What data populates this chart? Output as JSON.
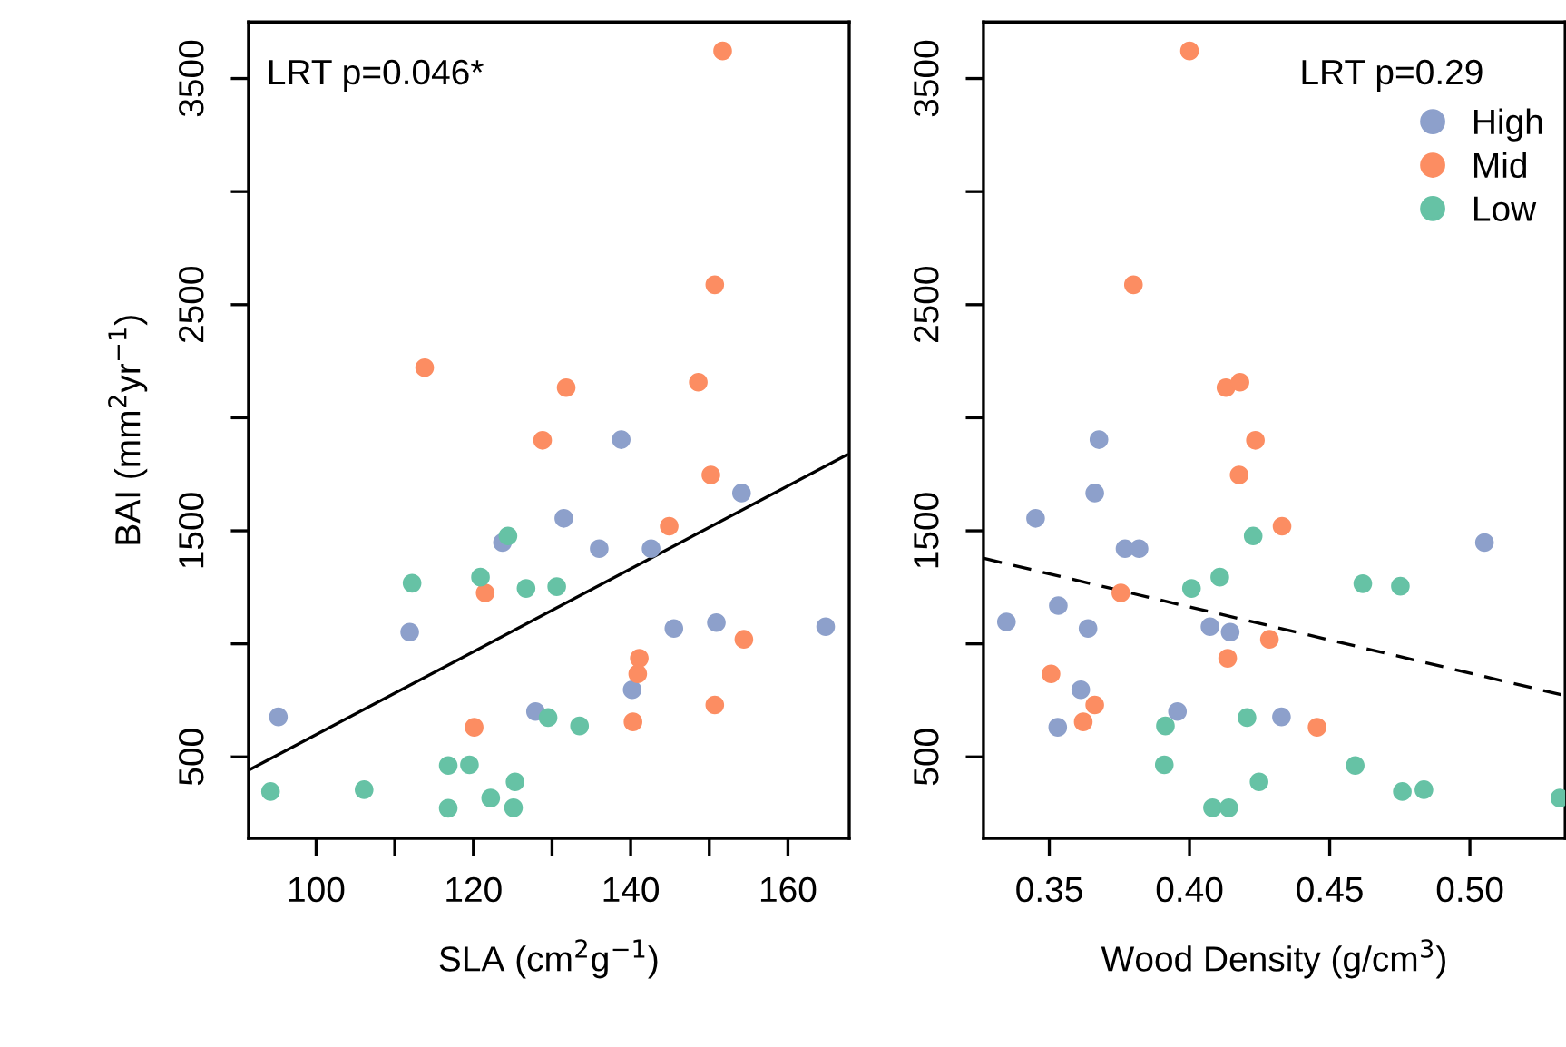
{
  "chart_data": [
    {
      "type": "scatter",
      "xlabel": "SLA (cm$^{2}$g$^{−1}$)",
      "ylabel": "BAI (mm$^{2}$yr$^{−1}$)",
      "annotations": [
        "LRT p=0.046*"
      ],
      "xlim": [
        91.4,
        167.8
      ],
      "ylim": [
        140,
        3750
      ],
      "xticks": [
        100,
        {
          "value": 110,
          "label": null
        },
        120,
        {
          "value": 130,
          "label": null
        },
        140,
        {
          "value": 150,
          "label": null
        },
        160
      ],
      "yticks": [
        500,
        {
          "value": 1000,
          "label": null
        },
        1500,
        {
          "value": 2000,
          "label": null
        },
        2500,
        {
          "value": 3000,
          "label": null
        },
        3500
      ],
      "grid": false,
      "legend": false,
      "marker": "circle",
      "series": [
        {
          "color": "#8da0cb",
          "x": [
            138.8,
            154.1,
            131.5,
            123.7,
            136.0,
            142.6,
            111.9,
            145.5,
            150.9,
            164.8,
            140.2,
            95.2,
            127.9
          ],
          "values": [
            1903,
            1667,
            1555,
            1448,
            1421,
            1421,
            1052,
            1068,
            1094,
            1076,
            797,
            677,
            701
          ]
        },
        {
          "color": "#fc8d62",
          "x": [
            128.8,
            150.2,
            144.9,
            121.5,
            154.4,
            141.1,
            140.9,
            150.7,
            140.3,
            120.1,
            151.7,
            150.7,
            113.8,
            131.8,
            148.6
          ],
          "values": [
            1900,
            1747,
            1520,
            1225,
            1020,
            936,
            867,
            730,
            655,
            631,
            3622,
            2588,
            2221,
            2133,
            2157
          ]
        },
        {
          "color": "#66c2a5",
          "x": [
            124.4,
            112.2,
            120.9,
            126.7,
            130.6,
            129.5,
            133.5,
            116.8,
            119.5,
            125.3,
            122.2,
            94.2,
            106.1,
            116.8,
            125.1
          ],
          "values": [
            1477,
            1268,
            1295,
            1245,
            1253,
            674,
            637,
            462,
            465,
            390,
            318,
            347,
            355,
            273,
            275
          ]
        },
        {
          "type": "line",
          "color": "#000000",
          "line_style": "solid",
          "marker": "none",
          "x": [
            91.4,
            167.5
          ],
          "values": [
            441,
            1836
          ]
        }
      ]
    },
    {
      "type": "scatter",
      "xlabel": "Wood Density (g/cm$^{3}$)",
      "annotations": [
        "LRT p=0.29"
      ],
      "xlim": [
        0.3265,
        0.534
      ],
      "ylim": [
        140,
        3750
      ],
      "xticks": [
        0.35,
        {
          "value": 0.4,
          "label": "0.40"
        },
        0.45,
        {
          "value": 0.5,
          "label": "0.50"
        }
      ],
      "yticks": [
        500,
        {
          "value": 1000,
          "label": null
        },
        1500,
        {
          "value": 2000,
          "label": null
        },
        2500,
        {
          "value": 3000,
          "label": null
        },
        3500
      ],
      "grid": false,
      "legend": "top right",
      "marker": "circle",
      "series": [
        {
          "name": "High",
          "color": "#8da0cb",
          "x": [
            0.3677,
            0.3662,
            0.3451,
            0.377,
            0.382,
            0.5052,
            0.3532,
            0.3347,
            0.3638,
            0.4073,
            0.4145,
            0.3612,
            0.3957,
            0.4328,
            0.353
          ],
          "values": [
            1903,
            1667,
            1555,
            1421,
            1421,
            1448,
            1169,
            1097,
            1068,
            1076,
            1052,
            797,
            701,
            677,
            631
          ]
        },
        {
          "name": "Mid",
          "color": "#fc8d62",
          "x": [
            0.4,
            0.38,
            0.413,
            0.418,
            0.4235,
            0.4177,
            0.433,
            0.3755,
            0.4285,
            0.4136,
            0.3506,
            0.3662,
            0.3621,
            0.4455
          ],
          "values": [
            3622,
            2588,
            2133,
            2157,
            1900,
            1747,
            1520,
            1225,
            1020,
            936,
            867,
            730,
            655,
            631
          ]
        },
        {
          "name": "Low",
          "color": "#66c2a5",
          "x": [
            0.4227,
            0.4108,
            0.4007,
            0.4618,
            0.4752,
            0.4205,
            0.3914,
            0.391,
            0.4591,
            0.4248,
            0.4759,
            0.4836,
            0.5321,
            0.4082,
            0.414
          ],
          "values": [
            1477,
            1295,
            1245,
            1266,
            1255,
            674,
            637,
            465,
            462,
            390,
            347,
            355,
            318,
            275,
            275
          ]
        },
        {
          "type": "line",
          "color": "#000000",
          "line_style": "dashed",
          "marker": "none",
          "x": [
            0.3267,
            0.534
          ],
          "values": [
            1378,
            771
          ]
        }
      ]
    }
  ]
}
